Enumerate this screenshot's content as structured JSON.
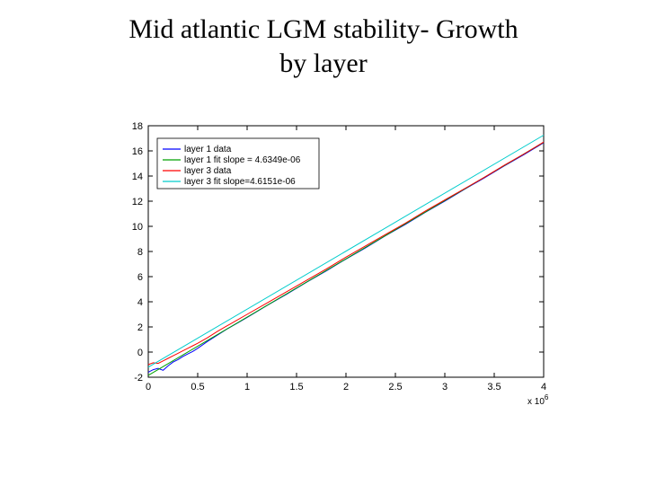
{
  "title_line1": "Mid atlantic LGM stability- Growth",
  "title_line2": "by layer",
  "chart": {
    "type": "line",
    "plot_bg": "#ffffff",
    "axis_color": "#000000",
    "tick_color": "#000000",
    "line_width": 1,
    "xlim": [
      0,
      4
    ],
    "ylim": [
      -2,
      18
    ],
    "xtick_step": 0.5,
    "ytick_step": 2,
    "xticks": [
      0,
      0.5,
      1,
      1.5,
      2,
      2.5,
      3,
      3.5,
      4
    ],
    "yticks": [
      -2,
      0,
      2,
      4,
      6,
      8,
      10,
      12,
      14,
      16,
      18
    ],
    "x_exponent_label": "x 10",
    "x_exponent_power": "6",
    "legend": {
      "box_stroke": "#000000",
      "items": [
        {
          "label": "layer 1 data",
          "color": "#0000ff"
        },
        {
          "label": "layer 1 fit slope = 4.6349e-06",
          "color": "#00a000"
        },
        {
          "label": "layer 3 data",
          "color": "#ff0000"
        },
        {
          "label": "layer 3 fit slope=4.6151e-06",
          "color": "#00cccc"
        }
      ]
    },
    "series": [
      {
        "name": "layer1_data",
        "color": "#0000ff",
        "width": 1,
        "points": [
          [
            0.0,
            -1.6
          ],
          [
            0.05,
            -1.4
          ],
          [
            0.1,
            -1.3
          ],
          [
            0.15,
            -1.45
          ],
          [
            0.2,
            -1.1
          ],
          [
            0.25,
            -0.8
          ],
          [
            0.3,
            -0.6
          ],
          [
            0.35,
            -0.35
          ],
          [
            0.4,
            -0.15
          ],
          [
            0.45,
            0.05
          ],
          [
            0.5,
            0.3
          ],
          [
            0.6,
            0.85
          ],
          [
            0.7,
            1.35
          ],
          [
            0.8,
            1.85
          ],
          [
            0.9,
            2.3
          ],
          [
            1.0,
            2.75
          ],
          [
            1.2,
            3.7
          ],
          [
            1.4,
            4.6
          ],
          [
            1.6,
            5.55
          ],
          [
            1.8,
            6.45
          ],
          [
            2.0,
            7.4
          ],
          [
            2.2,
            8.3
          ],
          [
            2.4,
            9.25
          ],
          [
            2.6,
            10.15
          ],
          [
            2.8,
            11.1
          ],
          [
            3.0,
            12.0
          ],
          [
            3.2,
            12.95
          ],
          [
            3.4,
            13.85
          ],
          [
            3.6,
            14.8
          ],
          [
            3.8,
            15.7
          ],
          [
            4.0,
            16.65
          ]
        ]
      },
      {
        "name": "layer1_fit",
        "color": "#00a000",
        "width": 1,
        "points": [
          [
            0.0,
            -1.85
          ],
          [
            4.0,
            16.68
          ]
        ]
      },
      {
        "name": "layer3_data",
        "color": "#ff0000",
        "width": 1,
        "points": [
          [
            0.0,
            -1.0
          ],
          [
            0.05,
            -0.85
          ],
          [
            0.1,
            -0.9
          ],
          [
            0.15,
            -0.7
          ],
          [
            0.2,
            -0.5
          ],
          [
            0.25,
            -0.3
          ],
          [
            0.3,
            -0.1
          ],
          [
            0.35,
            0.1
          ],
          [
            0.4,
            0.3
          ],
          [
            0.45,
            0.5
          ],
          [
            0.5,
            0.7
          ],
          [
            0.6,
            1.15
          ],
          [
            0.7,
            1.65
          ],
          [
            0.8,
            2.1
          ],
          [
            0.9,
            2.55
          ],
          [
            1.0,
            3.0
          ],
          [
            1.2,
            3.9
          ],
          [
            1.4,
            4.8
          ],
          [
            1.6,
            5.7
          ],
          [
            1.8,
            6.6
          ],
          [
            2.0,
            7.55
          ],
          [
            2.2,
            8.45
          ],
          [
            2.4,
            9.35
          ],
          [
            2.6,
            10.25
          ],
          [
            2.8,
            11.2
          ],
          [
            3.0,
            12.1
          ],
          [
            3.2,
            13.0
          ],
          [
            3.4,
            13.9
          ],
          [
            3.6,
            14.85
          ],
          [
            3.8,
            15.75
          ],
          [
            4.0,
            16.7
          ]
        ]
      },
      {
        "name": "layer3_fit",
        "color": "#00cccc",
        "width": 1,
        "points": [
          [
            0.0,
            -1.2
          ],
          [
            4.0,
            17.25
          ]
        ]
      }
    ]
  }
}
